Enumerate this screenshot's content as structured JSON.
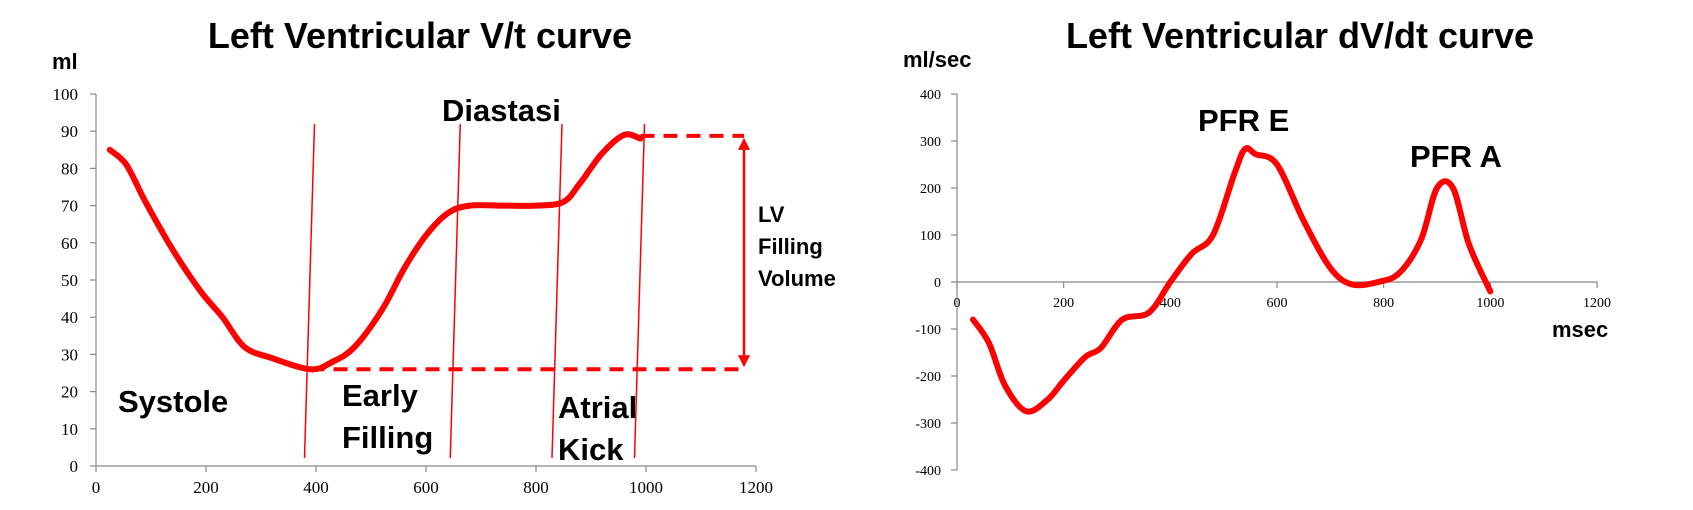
{
  "chart_data": [
    {
      "type": "line",
      "title": "Left Ventricular V/t curve",
      "ylabel": "ml",
      "xlabel": "",
      "xlim": [
        0,
        1200
      ],
      "ylim": [
        0,
        100
      ],
      "x_ticks": [
        "0",
        "200",
        "400",
        "600",
        "800",
        "1000",
        "1200"
      ],
      "y_ticks": [
        "0",
        "10",
        "20",
        "30",
        "40",
        "50",
        "60",
        "70",
        "80",
        "90",
        "100"
      ],
      "series": [
        {
          "color": "#ff0000",
          "x": [
            25,
            55,
            90,
            140,
            190,
            230,
            270,
            320,
            390,
            430,
            470,
            520,
            560,
            600,
            640,
            680,
            740,
            800,
            850,
            880,
            920,
            960,
            990
          ],
          "y": [
            85,
            81,
            71,
            58,
            47,
            40,
            32,
            29,
            26,
            28,
            32,
            42,
            53,
            62,
            68,
            70,
            70,
            70,
            71,
            76,
            84,
            89,
            88
          ]
        }
      ],
      "phase_lines_x": [
        390,
        655,
        840,
        990
      ],
      "filling_volume_range": [
        26,
        89
      ],
      "annotations": {
        "systole": "Systole",
        "early_filling_1": "Early",
        "early_filling_2": "Filling",
        "diastasi": "Diastasi",
        "atrial_kick_1": "Atrial",
        "atrial_kick_2": "Kick",
        "lv_1": "LV",
        "lv_2": "Filling",
        "lv_3": "Volume"
      }
    },
    {
      "type": "line",
      "title": "Left Ventricular dV/dt curve",
      "ylabel": "ml/sec",
      "xlabel": "msec",
      "xlim": [
        0,
        1200
      ],
      "ylim": [
        -400,
        400
      ],
      "x_ticks": [
        "0",
        "200",
        "400",
        "600",
        "800",
        "1000",
        "1200"
      ],
      "y_ticks": [
        "400",
        "300",
        "200",
        "100",
        "0",
        "-100",
        "-200",
        "-300",
        "-400"
      ],
      "series": [
        {
          "color": "#ff0000",
          "x": [
            30,
            60,
            90,
            130,
            170,
            200,
            240,
            270,
            310,
            360,
            400,
            440,
            480,
            520,
            540,
            560,
            600,
            650,
            700,
            740,
            790,
            830,
            870,
            900,
            930,
            960,
            1000
          ],
          "y": [
            -80,
            -130,
            -220,
            -275,
            -250,
            -210,
            -160,
            -140,
            -80,
            -65,
            0,
            60,
            100,
            230,
            283,
            272,
            250,
            130,
            30,
            -5,
            0,
            20,
            90,
            200,
            200,
            80,
            -20
          ]
        }
      ],
      "annotations": {
        "pfr_e": "PFR E",
        "pfr_a": "PFR A"
      }
    }
  ]
}
